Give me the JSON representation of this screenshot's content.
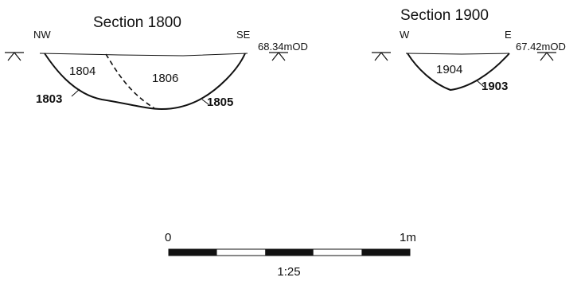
{
  "section_1800": {
    "title": "Section 1800",
    "orientation_left": "NW",
    "orientation_right": "SE",
    "datum_level": "68.34mOD",
    "fills": [
      "1804",
      "1806"
    ],
    "cuts": [
      "1803",
      "1805"
    ]
  },
  "section_1900": {
    "title": "Section 1900",
    "orientation_left": "W",
    "orientation_right": "E",
    "datum_level": "67.42mOD",
    "fills": [
      "1904"
    ],
    "cuts": [
      "1903"
    ]
  },
  "scale_bar": {
    "start_label": "0",
    "end_label": "1m",
    "ratio": "1:25",
    "segments": 5
  }
}
